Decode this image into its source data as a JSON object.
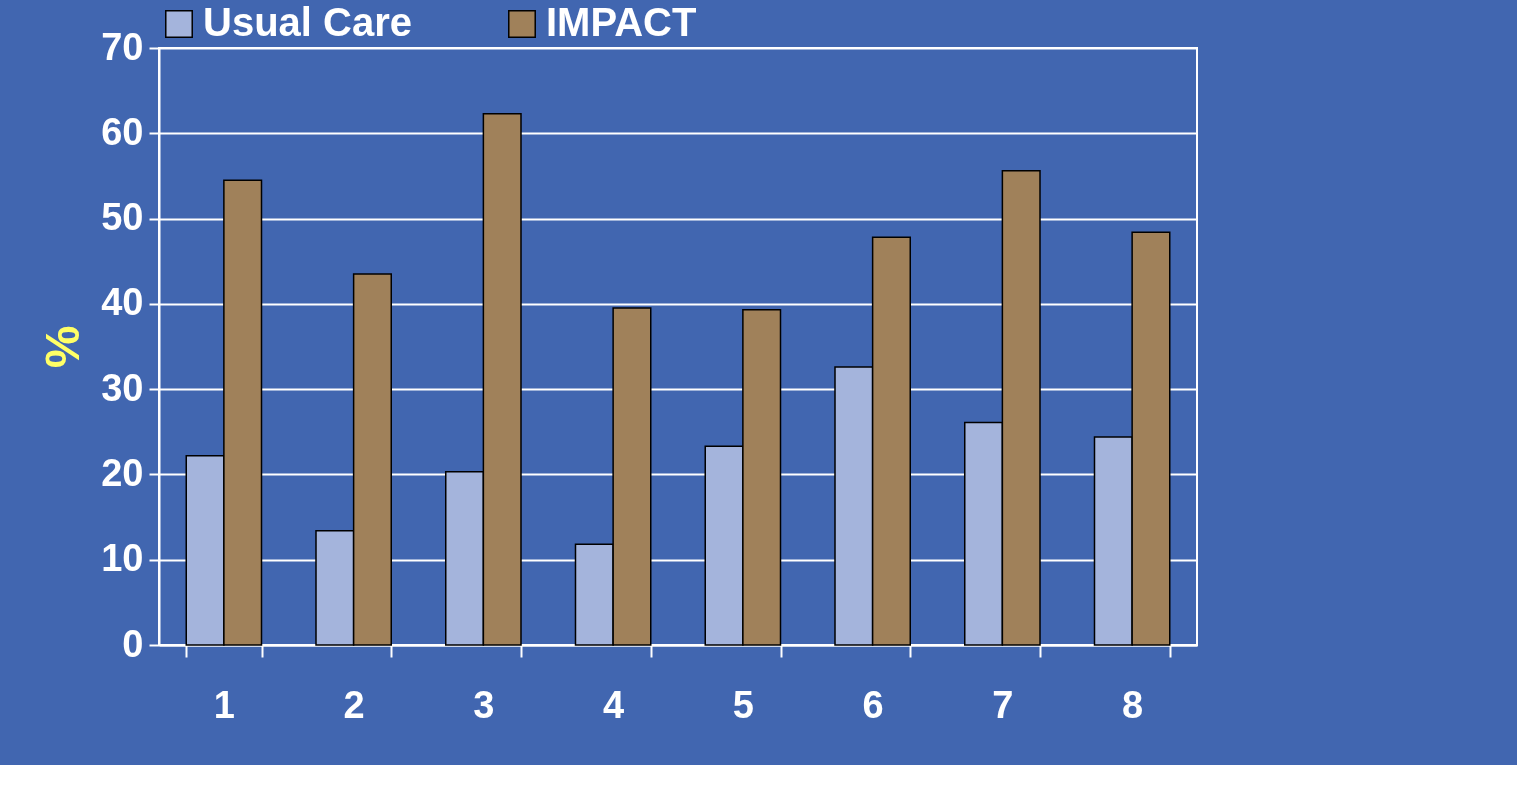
{
  "chart_data": {
    "type": "bar",
    "ylabel": "%",
    "categories": [
      "1",
      "2",
      "3",
      "4",
      "5",
      "6",
      "7",
      "8"
    ],
    "series": [
      {
        "name": "Usual Care",
        "color": "#a4b4dc",
        "values": [
          22.2,
          13.4,
          20.3,
          11.8,
          23.3,
          32.6,
          26.1,
          24.4
        ]
      },
      {
        "name": "IMPACT",
        "color": "#a0815a",
        "values": [
          54.5,
          43.5,
          62.3,
          39.5,
          39.3,
          47.8,
          55.6,
          48.4
        ]
      }
    ],
    "ylim": [
      0,
      70
    ],
    "yticks": [
      0,
      10,
      20,
      30,
      40,
      50,
      60,
      70
    ],
    "grid": "y",
    "legend": "top"
  }
}
